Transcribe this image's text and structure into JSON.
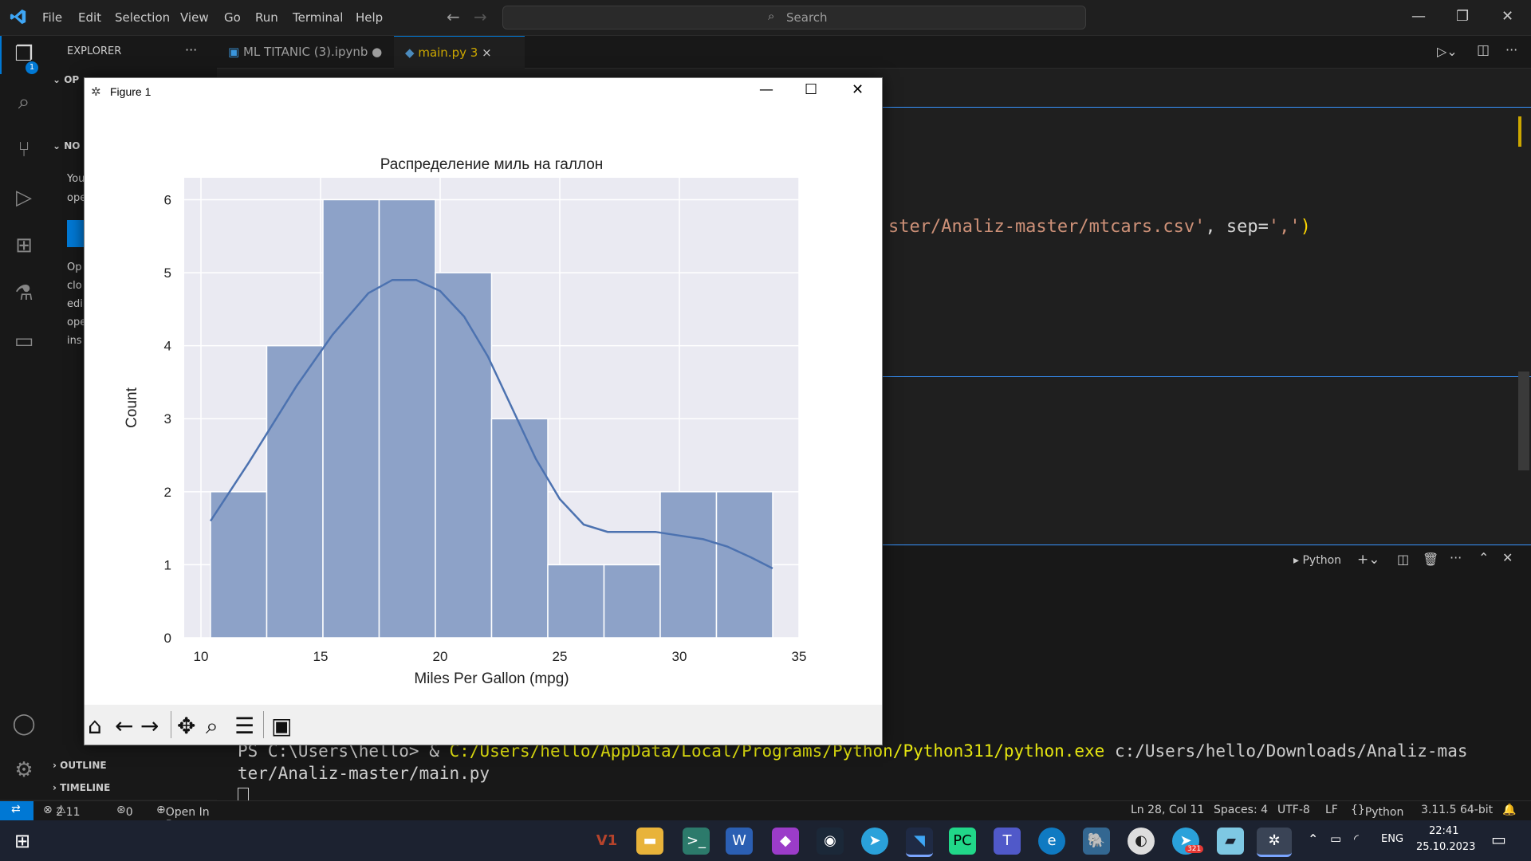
{
  "menu": [
    "File",
    "Edit",
    "Selection",
    "View",
    "Go",
    "Run",
    "Terminal",
    "Help"
  ],
  "search": {
    "placeholder": "Search"
  },
  "sidebar": {
    "title": "EXPLORER",
    "open_editors": "OP",
    "no_folder": "NO",
    "text_lines": [
      "You",
      "ope",
      "Op",
      "clo",
      "edi",
      "ope",
      "ins"
    ],
    "outline": "OUTLINE",
    "timeline": "TIMELINE",
    "badge": "1"
  },
  "tabs": [
    {
      "label": "ML TITANIC (3).ipynb",
      "modified": "●"
    },
    {
      "label": "main.py",
      "problems": "3",
      "close": "×"
    }
  ],
  "editor": {
    "code_line": "ster/Analiz-master/mtcars.csv', sep=',')",
    "code_line_a": "ster/Analiz-master/mtcars.csv'",
    "code_line_b": ", sep=",
    "code_line_c": "','",
    "code_line_d": ")"
  },
  "terminal": {
    "shell_label": "Python",
    "line1_prefix": "PS C:\\Users\\hello> & ",
    "line1_path": "C:/Users/hello/AppData/Local/Programs/Python/Python311/python.exe",
    "line1_arg": " c:/Users/hello/Downloads/Analiz-mas",
    "line2": "ter/Analiz-master/main.py"
  },
  "status": {
    "errors": "2",
    "warnings": "11",
    "ports": "0",
    "open_browser": "Open In Browser",
    "position": "Ln 28, Col 11",
    "spaces": "Spaces: 4",
    "encoding": "UTF-8",
    "eol": "LF",
    "language": "Python",
    "interpreter": "3.11.5 64-bit"
  },
  "taskbar": {
    "lang": "ENG",
    "time": "22:41",
    "date": "25.10.2023",
    "telegram_badge": "321"
  },
  "figure": {
    "window_title": "Figure 1"
  },
  "colors": {
    "bar": "#8da2c8",
    "kde": "#4c72b0",
    "plot_bg": "#eaeaf2"
  },
  "chart_data": {
    "type": "bar",
    "title": "Распределение миль на галлон",
    "xlabel": "Miles Per Gallon (mpg)",
    "ylabel": "Count",
    "xlim": [
      9.3,
      35
    ],
    "ylim": [
      0,
      6.3
    ],
    "xticks": [
      10,
      15,
      20,
      25,
      30,
      35
    ],
    "yticks": [
      0,
      1,
      2,
      3,
      4,
      5,
      6
    ],
    "bins": [
      {
        "x0": 10.4,
        "x1": 12.75,
        "count": 2
      },
      {
        "x0": 12.75,
        "x1": 15.1,
        "count": 4
      },
      {
        "x0": 15.1,
        "x1": 17.45,
        "count": 6
      },
      {
        "x0": 17.45,
        "x1": 19.8,
        "count": 6
      },
      {
        "x0": 19.8,
        "x1": 22.15,
        "count": 5
      },
      {
        "x0": 22.15,
        "x1": 24.5,
        "count": 3
      },
      {
        "x0": 24.5,
        "x1": 26.85,
        "count": 1
      },
      {
        "x0": 26.85,
        "x1": 29.2,
        "count": 1
      },
      {
        "x0": 29.2,
        "x1": 31.55,
        "count": 2
      },
      {
        "x0": 31.55,
        "x1": 33.9,
        "count": 2
      }
    ],
    "kde": {
      "x": [
        10.4,
        12,
        14,
        15.5,
        17,
        18,
        19,
        20,
        21,
        22,
        23,
        24,
        25,
        26,
        27,
        28,
        29,
        30,
        31,
        32,
        33,
        33.9
      ],
      "y": [
        1.6,
        2.4,
        3.45,
        4.15,
        4.72,
        4.9,
        4.9,
        4.75,
        4.4,
        3.85,
        3.15,
        2.45,
        1.9,
        1.55,
        1.45,
        1.45,
        1.45,
        1.4,
        1.35,
        1.25,
        1.1,
        0.95
      ]
    },
    "grid": true
  }
}
